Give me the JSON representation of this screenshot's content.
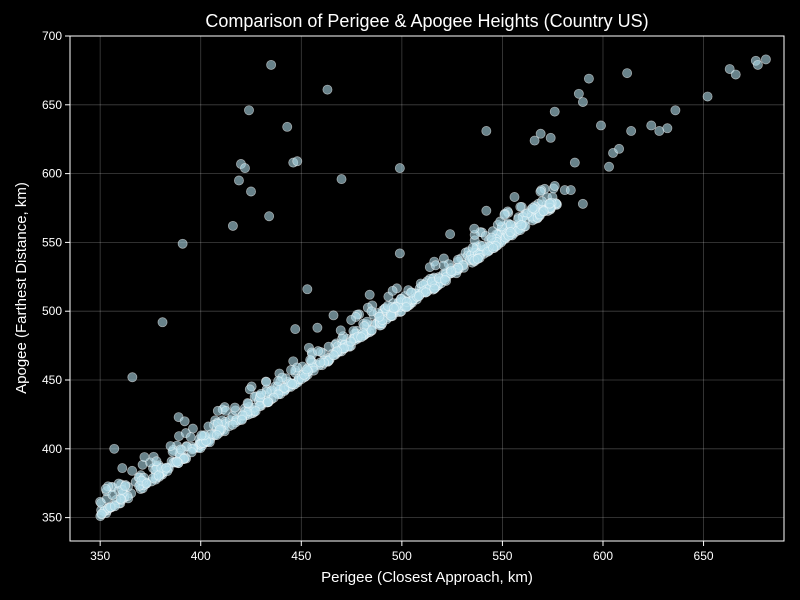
{
  "chart_data": {
    "type": "scatter",
    "title": "Comparison of Perigee & Apogee Heights (Country US)",
    "xlabel": "Perigee (Closest Approach, km)",
    "ylabel": "Apogee (Farthest Distance, km)",
    "xlim": [
      335,
      690
    ],
    "ylim": [
      333,
      700
    ],
    "x_ticks": [
      350,
      400,
      450,
      500,
      550,
      600,
      650
    ],
    "y_ticks": [
      350,
      400,
      450,
      500,
      550,
      600,
      650,
      700
    ],
    "grid": true,
    "legend": "none",
    "colors": {
      "background": "#000000",
      "text": "#ffffff",
      "point_fill": "#add8e6",
      "point_edge": "#ffffff"
    },
    "outliers": [
      [
        435,
        679
      ],
      [
        463,
        661
      ],
      [
        424,
        646
      ],
      [
        443,
        634
      ],
      [
        446,
        608
      ],
      [
        448,
        609
      ],
      [
        420,
        607
      ],
      [
        422,
        604
      ],
      [
        419,
        595
      ],
      [
        425,
        587
      ],
      [
        416,
        562
      ],
      [
        434,
        569
      ],
      [
        470,
        596
      ],
      [
        499,
        604
      ],
      [
        453,
        516
      ],
      [
        391,
        549
      ],
      [
        381,
        492
      ],
      [
        366,
        452
      ],
      [
        542,
        631
      ],
      [
        566,
        624
      ],
      [
        569,
        629
      ],
      [
        574,
        626
      ],
      [
        576,
        645
      ],
      [
        581,
        588
      ],
      [
        586,
        608
      ],
      [
        588,
        658
      ],
      [
        590,
        652
      ],
      [
        593,
        669
      ],
      [
        599,
        635
      ],
      [
        603,
        605
      ],
      [
        605,
        615
      ],
      [
        608,
        618
      ],
      [
        612,
        673
      ],
      [
        614,
        631
      ],
      [
        624,
        635
      ],
      [
        628,
        631
      ],
      [
        632,
        633
      ],
      [
        636,
        646
      ],
      [
        652,
        656
      ],
      [
        663,
        676
      ],
      [
        666,
        672
      ],
      [
        676,
        682
      ],
      [
        677,
        679
      ],
      [
        681,
        683
      ],
      [
        357,
        400
      ],
      [
        361,
        386
      ],
      [
        372,
        394
      ],
      [
        378,
        391
      ],
      [
        385,
        402
      ],
      [
        389,
        423
      ],
      [
        392,
        420
      ],
      [
        408,
        410
      ],
      [
        417,
        430
      ],
      [
        430,
        440
      ],
      [
        447,
        487
      ],
      [
        458,
        488
      ],
      [
        466,
        497
      ],
      [
        484,
        512
      ],
      [
        499,
        542
      ],
      [
        524,
        556
      ],
      [
        536,
        560
      ],
      [
        542,
        573
      ],
      [
        551,
        570
      ],
      [
        556,
        583
      ],
      [
        565,
        575
      ],
      [
        576,
        591
      ],
      [
        584,
        588
      ],
      [
        590,
        578
      ]
    ],
    "band": {
      "x_start": 350,
      "x_end": 578,
      "point_count": 700,
      "seed": 7
    }
  }
}
